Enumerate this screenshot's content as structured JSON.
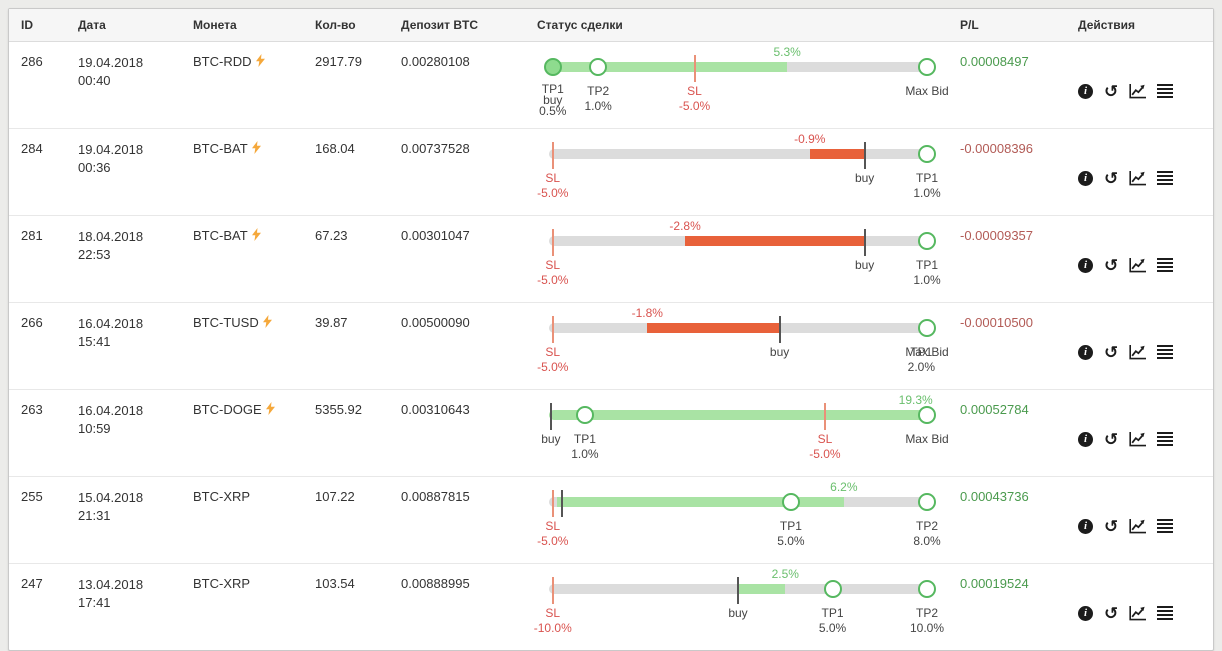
{
  "page": {
    "background": "#ececea"
  },
  "colors": {
    "positive": "#4a9a4d",
    "negative": "#b25b56",
    "bar_green": "#a9e3a4",
    "bar_red": "#e8613a",
    "sl_red": "#d9534f",
    "circle_green": "#56b860",
    "label_green": "#6abf6d"
  },
  "table": {
    "headers": {
      "id": "ID",
      "date": "Дата",
      "coin": "Монета",
      "qty": "Кол-во",
      "deposit": "Депозит BTC",
      "status": "Статус сделки",
      "pl": "P/L",
      "actions": "Действия"
    },
    "action_icons": [
      {
        "name": "info-icon",
        "glyph": "info",
        "label": "i"
      },
      {
        "name": "history-icon",
        "glyph": "history",
        "label": "↺"
      },
      {
        "name": "chart-icon",
        "glyph": "chart"
      },
      {
        "name": "list-icon",
        "glyph": "list"
      }
    ],
    "rows": [
      {
        "id": "286",
        "date": "19.04.2018",
        "time": "00:40",
        "coin": "BTC-RDD",
        "bolt": true,
        "qty": "2917.79",
        "deposit": "0.00280108",
        "pl": "0.00008497",
        "pl_sign": "pos",
        "status": {
          "value": {
            "label": "5.3%",
            "sign": "pos",
            "pos": 63
          },
          "segments": [
            {
              "start": 0,
              "end": 63,
              "color": "green"
            }
          ],
          "markers": [
            {
              "name": "tp1-buy-marker",
              "kind": "circle-solid",
              "pos": 1,
              "tight": true,
              "lines": [
                "TP1",
                "buy",
                "0.5%"
              ]
            },
            {
              "name": "tp2-marker",
              "kind": "circle-open",
              "pos": 13,
              "lines": [
                "TP2",
                "1.0%"
              ]
            },
            {
              "name": "sl-marker",
              "kind": "tick-red",
              "pos": 38.5,
              "lines": [
                "SL",
                "-5.0%"
              ]
            },
            {
              "name": "maxbid-marker",
              "kind": "circle-open",
              "pos": 100,
              "lines": [
                "Max Bid"
              ]
            }
          ]
        }
      },
      {
        "id": "284",
        "date": "19.04.2018",
        "time": "00:36",
        "coin": "BTC-BAT",
        "bolt": true,
        "qty": "168.04",
        "deposit": "0.00737528",
        "pl": "-0.00008396",
        "pl_sign": "neg",
        "status": {
          "value": {
            "label": "-0.9%",
            "sign": "neg",
            "pos": 69
          },
          "segments": [
            {
              "start": 69,
              "end": 83.5,
              "color": "red"
            }
          ],
          "markers": [
            {
              "name": "sl-marker",
              "kind": "tick-red",
              "pos": 1,
              "lines": [
                "SL",
                "-5.0%"
              ]
            },
            {
              "name": "buy-marker",
              "kind": "tick-dark",
              "pos": 83.5,
              "lines": [
                "buy"
              ]
            },
            {
              "name": "tp1-marker",
              "kind": "circle-open",
              "pos": 100,
              "lines": [
                "TP1",
                "1.0%"
              ]
            }
          ]
        }
      },
      {
        "id": "281",
        "date": "18.04.2018",
        "time": "22:53",
        "coin": "BTC-BAT",
        "bolt": true,
        "qty": "67.23",
        "deposit": "0.00301047",
        "pl": "-0.00009357",
        "pl_sign": "neg",
        "status": {
          "value": {
            "label": "-2.8%",
            "sign": "neg",
            "pos": 36
          },
          "segments": [
            {
              "start": 36,
              "end": 83.5,
              "color": "red"
            }
          ],
          "markers": [
            {
              "name": "sl-marker",
              "kind": "tick-red",
              "pos": 1,
              "lines": [
                "SL",
                "-5.0%"
              ]
            },
            {
              "name": "buy-marker",
              "kind": "tick-dark",
              "pos": 83.5,
              "lines": [
                "buy"
              ]
            },
            {
              "name": "tp1-marker",
              "kind": "circle-open",
              "pos": 100,
              "lines": [
                "TP1",
                "1.0%"
              ]
            }
          ]
        }
      },
      {
        "id": "266",
        "date": "16.04.2018",
        "time": "15:41",
        "coin": "BTC-TUSD",
        "bolt": true,
        "qty": "39.87",
        "deposit": "0.00500090",
        "pl": "-0.00010500",
        "pl_sign": "neg",
        "status": {
          "value": {
            "label": "-1.8%",
            "sign": "neg",
            "pos": 26
          },
          "segments": [
            {
              "start": 26,
              "end": 61,
              "color": "red"
            }
          ],
          "markers": [
            {
              "name": "sl-marker",
              "kind": "tick-red",
              "pos": 1,
              "lines": [
                "SL",
                "-5.0%"
              ]
            },
            {
              "name": "buy-marker",
              "kind": "tick-dark",
              "pos": 61,
              "lines": [
                "buy"
              ]
            },
            {
              "name": "maxbid-marker",
              "kind": "circle-open",
              "pos": 100,
              "lines": [
                "Max Bid"
              ]
            },
            {
              "name": "tp1-marker",
              "kind": "labels",
              "pos": 98.5,
              "lines": [
                "TP1",
                "2.0%"
              ]
            }
          ]
        }
      },
      {
        "id": "263",
        "date": "16.04.2018",
        "time": "10:59",
        "coin": "BTC-DOGE",
        "bolt": true,
        "qty": "5355.92",
        "deposit": "0.00310643",
        "pl": "0.00052784",
        "pl_sign": "pos",
        "status": {
          "value": {
            "label": "19.3%",
            "sign": "pos",
            "pos": 97
          },
          "segments": [
            {
              "start": 0,
              "end": 100,
              "color": "green"
            }
          ],
          "markers": [
            {
              "name": "buy-marker",
              "kind": "tick-dark",
              "pos": 0.5,
              "lines": [
                "buy"
              ]
            },
            {
              "name": "tp1-marker",
              "kind": "circle-open",
              "pos": 9.5,
              "lines": [
                "TP1",
                "1.0%"
              ]
            },
            {
              "name": "sl-marker",
              "kind": "tick-red",
              "pos": 73,
              "lines": [
                "SL",
                "-5.0%"
              ]
            },
            {
              "name": "maxbid-marker",
              "kind": "circle-open",
              "pos": 100,
              "lines": [
                "Max Bid"
              ]
            }
          ]
        }
      },
      {
        "id": "255",
        "date": "15.04.2018",
        "time": "21:31",
        "coin": "BTC-XRP",
        "bolt": false,
        "qty": "107.22",
        "deposit": "0.00887815",
        "pl": "0.00043736",
        "pl_sign": "pos",
        "status": {
          "value": {
            "label": "6.2%",
            "sign": "pos",
            "pos": 78
          },
          "segments": [
            {
              "start": 2,
              "end": 78,
              "color": "green"
            }
          ],
          "markers": [
            {
              "name": "sl-marker",
              "kind": "tick-red",
              "pos": 1,
              "lines": [
                "SL",
                "-5.0%"
              ]
            },
            {
              "name": "buy-marker",
              "kind": "tick-dark",
              "pos": 3.5,
              "lines": []
            },
            {
              "name": "tp1-marker",
              "kind": "circle-open",
              "pos": 64,
              "lines": [
                "TP1",
                "5.0%"
              ]
            },
            {
              "name": "tp2-marker",
              "kind": "circle-open",
              "pos": 100,
              "lines": [
                "TP2",
                "8.0%"
              ]
            }
          ]
        }
      },
      {
        "id": "247",
        "date": "13.04.2018",
        "time": "17:41",
        "coin": "BTC-XRP",
        "bolt": false,
        "qty": "103.54",
        "deposit": "0.00888995",
        "pl": "0.00019524",
        "pl_sign": "pos",
        "status": {
          "value": {
            "label": "2.5%",
            "sign": "pos",
            "pos": 62.5
          },
          "segments": [
            {
              "start": 50,
              "end": 62.5,
              "color": "green"
            }
          ],
          "markers": [
            {
              "name": "sl-marker",
              "kind": "tick-red",
              "pos": 1,
              "lines": [
                "SL",
                "-10.0%"
              ]
            },
            {
              "name": "buy-marker",
              "kind": "tick-dark",
              "pos": 50,
              "lines": [
                "buy"
              ]
            },
            {
              "name": "tp1-marker",
              "kind": "circle-open",
              "pos": 75,
              "lines": [
                "TP1",
                "5.0%"
              ]
            },
            {
              "name": "tp2-marker",
              "kind": "circle-open",
              "pos": 100,
              "lines": [
                "TP2",
                "10.0%"
              ]
            }
          ]
        }
      }
    ]
  }
}
